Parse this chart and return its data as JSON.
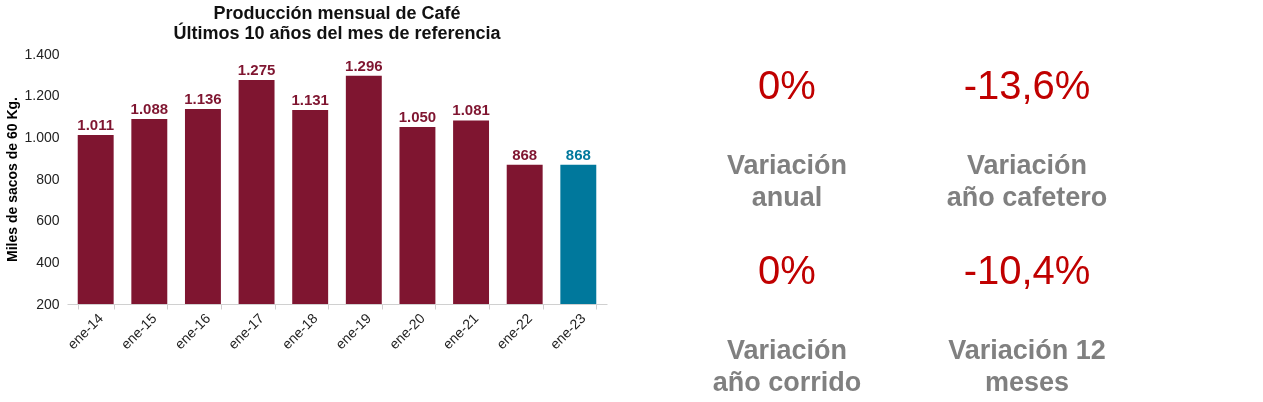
{
  "chart_data": [
    {
      "type": "bar",
      "title": [
        "Producción mensual de Café",
        "Últimos 10 años del mes de referencia"
      ],
      "ylabel": "Miles de sacos de 60 Kg.",
      "categories": [
        "ene-14",
        "ene-15",
        "ene-16",
        "ene-17",
        "ene-18",
        "ene-19",
        "ene-20",
        "ene-21",
        "ene-22",
        "ene-23"
      ],
      "values": [
        1011,
        1088,
        1136,
        1275,
        1131,
        1296,
        1050,
        1081,
        868,
        868
      ],
      "colors": [
        "#7f1530",
        "#7f1530",
        "#7f1530",
        "#7f1530",
        "#7f1530",
        "#7f1530",
        "#7f1530",
        "#7f1530",
        "#7f1530",
        "#00789c"
      ],
      "value_labels": [
        "1.011",
        "1.088",
        "1.136",
        "1.275",
        "1.131",
        "1.296",
        "1.050",
        "1.081",
        "868",
        "868"
      ],
      "ylim": [
        200,
        1400
      ],
      "yticks": [
        {
          "value": 200,
          "label": "200"
        },
        {
          "value": 400,
          "label": "400"
        },
        {
          "value": 600,
          "label": "600"
        },
        {
          "value": 800,
          "label": "800"
        },
        {
          "value": 1000,
          "label": "1.000"
        },
        {
          "value": 1200,
          "label": "1.200"
        },
        {
          "value": 1400,
          "label": "1.400"
        }
      ]
    },
    {
      "type": "other",
      "annotations": [
        "0%",
        "Variación anual",
        "-13,6%",
        "Variación año cafetero",
        "0%",
        "Variación año corrido",
        "-10,4%",
        "Variación 12 meses"
      ]
    }
  ]
}
